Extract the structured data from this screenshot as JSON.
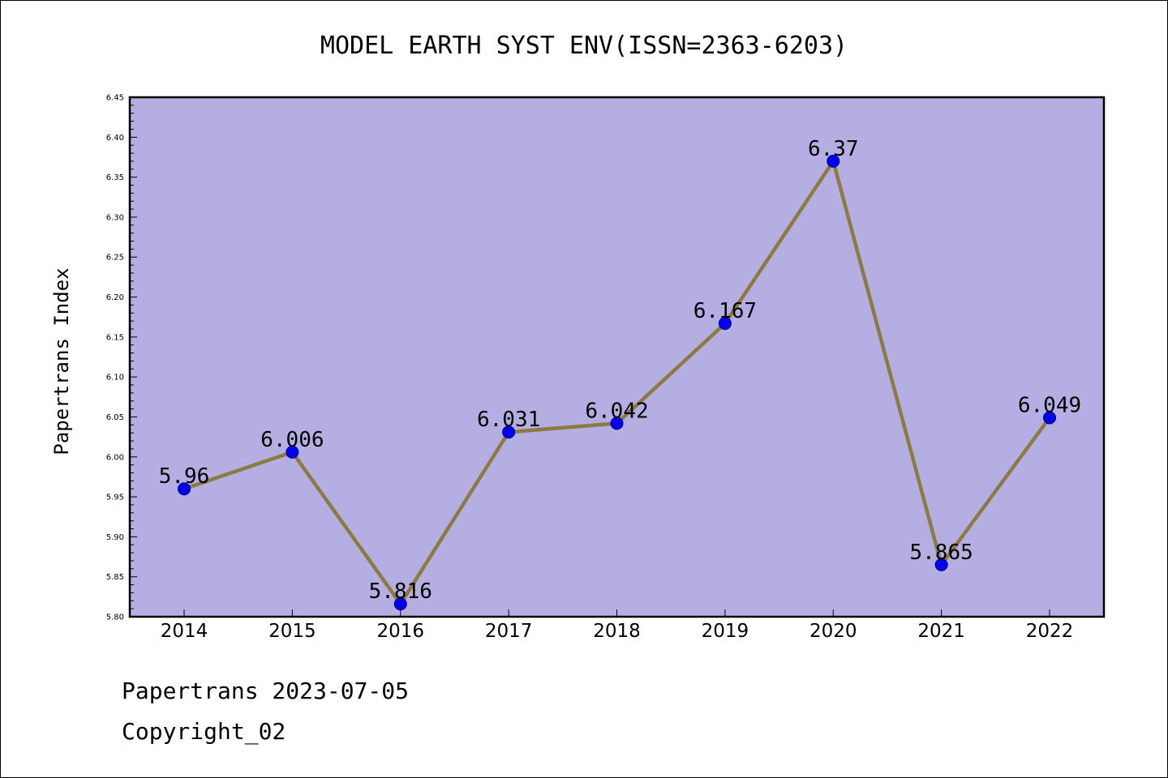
{
  "chart_data": {
    "type": "line",
    "title": "MODEL EARTH SYST ENV(ISSN=2363-6203)",
    "ylabel": "Papertrans Index",
    "xlabel": "",
    "categories": [
      "2014",
      "2015",
      "2016",
      "2017",
      "2018",
      "2019",
      "2020",
      "2021",
      "2022"
    ],
    "values": [
      5.96,
      6.006,
      5.816,
      6.031,
      6.042,
      6.167,
      6.37,
      5.865,
      6.049
    ],
    "data_labels": [
      "5.96",
      "6.006",
      "5.816",
      "6.031",
      "6.042",
      "6.167",
      "6.37",
      "5.865",
      "6.049"
    ],
    "ylim": [
      5.8,
      6.45
    ],
    "yticks": [
      "5.80",
      "5.85",
      "5.90",
      "5.95",
      "6.00",
      "6.05",
      "6.10",
      "6.15",
      "6.20",
      "6.25",
      "6.30",
      "6.35",
      "6.40",
      "6.45"
    ],
    "grid": false,
    "legend": "none",
    "colors": {
      "plot_background": "#b5aee2",
      "line": "#8c7b40",
      "marker": "#0000ee"
    }
  },
  "footer": {
    "line1": "Papertrans 2023-07-05",
    "line2": "Copyright_02"
  }
}
